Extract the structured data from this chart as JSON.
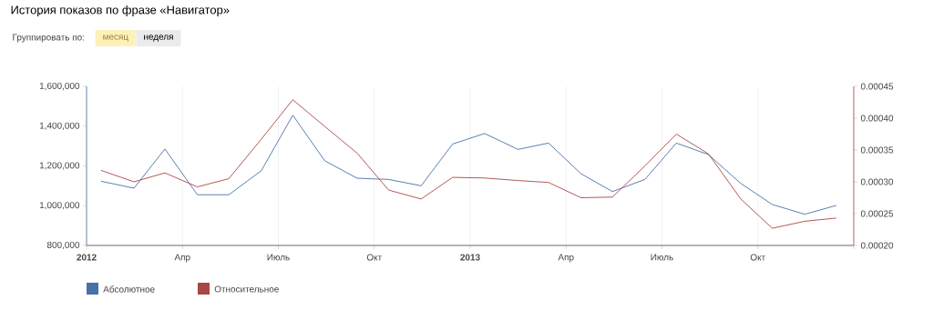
{
  "chart_data": {
    "type": "line",
    "title": "История показов по фразе «Навигатор»",
    "annotations": [
      "Группировать по:",
      "месяц",
      "неделя"
    ],
    "x": [
      "2012-01-15",
      "2012-02-15",
      "2012-03-15",
      "2012-04-15",
      "2012-05-15",
      "2012-06-15",
      "2012-07-15",
      "2012-08-15",
      "2012-09-15",
      "2012-10-15",
      "2012-11-15",
      "2012-12-15",
      "2013-01-15",
      "2013-02-15",
      "2013-03-15",
      "2013-04-15",
      "2013-05-15",
      "2013-06-15",
      "2013-07-15",
      "2013-08-15",
      "2013-09-15",
      "2013-10-15",
      "2013-11-15",
      "2013-12-15"
    ],
    "series": [
      {
        "name": "Абсолютное",
        "color": "#4572a7",
        "values": [
          1123000,
          1088000,
          1285000,
          1055000,
          1055000,
          1176000,
          1455000,
          1226000,
          1138000,
          1132000,
          1100000,
          1310000,
          1363000,
          1283000,
          1315000,
          1161000,
          1071000,
          1132000,
          1315000,
          1257000,
          1112000,
          1006000,
          957000,
          1001000
        ]
      },
      {
        "name": "Относительное",
        "color": "#aa4643",
        "axis": "y2",
        "values": [
          0.000318,
          0.0003,
          0.000314,
          0.000292,
          0.000305,
          0.000367,
          0.000429,
          0.000387,
          0.000345,
          0.000287,
          0.000273,
          0.000307,
          0.000306,
          0.000302,
          0.000299,
          0.000275,
          0.000276,
          0.000325,
          0.000375,
          0.000344,
          0.000273,
          0.000227,
          0.000238,
          0.000243
        ]
      }
    ],
    "xlim": [
      "2012-01",
      "2014-01"
    ],
    "xticks": [
      {
        "value": "2012-01",
        "label": "2012"
      },
      {
        "value": "2012-04",
        "label": "Апр"
      },
      {
        "value": "2012-07",
        "label": "Июль"
      },
      {
        "value": "2012-10",
        "label": "Окт"
      },
      {
        "value": "2013-01",
        "label": "2013"
      },
      {
        "value": "2013-04",
        "label": "Апр"
      },
      {
        "value": "2013-07",
        "label": "Июль"
      },
      {
        "value": "2013-10",
        "label": "Окт"
      },
      {
        "value": "2014-01",
        "label": null
      }
    ],
    "ylim": [
      800000,
      1600000
    ],
    "yticks": [
      {
        "value": 800000,
        "label": "800,000"
      },
      {
        "value": 1000000,
        "label": "1,000,000"
      },
      {
        "value": 1200000,
        "label": "1,200,000"
      },
      {
        "value": 1400000,
        "label": "1,400,000"
      },
      {
        "value": 1600000,
        "label": "1,600,000"
      }
    ],
    "y2lim": [
      0.0002,
      0.00045
    ],
    "y2ticks": [
      {
        "value": 0.0002,
        "label": "0.00020"
      },
      {
        "value": 0.00025,
        "label": "0.00025"
      },
      {
        "value": 0.0003,
        "label": "0.00030"
      },
      {
        "value": 0.00035,
        "label": "0.00035"
      },
      {
        "value": 0.0004,
        "label": "0.00040"
      },
      {
        "value": 0.00045,
        "label": "0.00045"
      }
    ],
    "grid": "x",
    "legend": "bottom left"
  }
}
